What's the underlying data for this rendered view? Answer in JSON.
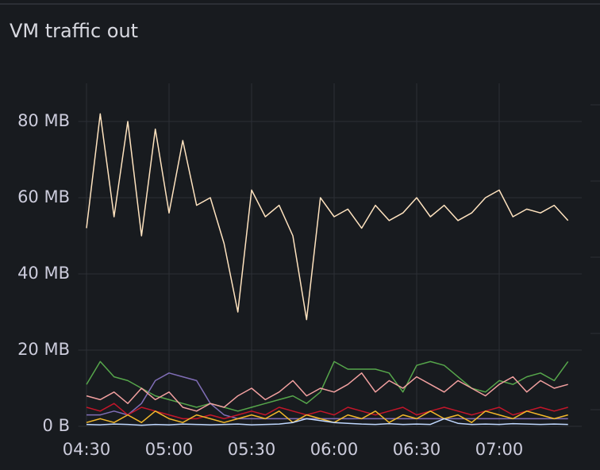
{
  "chart_data": {
    "type": "line",
    "title": "VM traffic out",
    "x": [
      "04:30",
      "04:35",
      "04:40",
      "04:45",
      "04:50",
      "04:55",
      "05:00",
      "05:05",
      "05:10",
      "05:15",
      "05:20",
      "05:25",
      "05:30",
      "05:35",
      "05:40",
      "05:45",
      "05:50",
      "05:55",
      "06:00",
      "06:05",
      "06:10",
      "06:15",
      "06:20",
      "06:25",
      "06:30",
      "06:35",
      "06:40",
      "06:45",
      "06:50",
      "06:55",
      "07:00",
      "07:05",
      "07:10",
      "07:15",
      "07:20",
      "07:25"
    ],
    "xlim": [
      "04:27",
      "07:30"
    ],
    "xticks": [
      "04:30",
      "05:00",
      "05:30",
      "06:00",
      "06:30",
      "07:00"
    ],
    "ylim": [
      0,
      90
    ],
    "yticks": [
      {
        "value": 0,
        "label": "0 B"
      },
      {
        "value": 20,
        "label": "20 MB"
      },
      {
        "value": 40,
        "label": "40 MB"
      },
      {
        "value": 60,
        "label": "60 MB"
      },
      {
        "value": 80,
        "label": "80 MB"
      }
    ],
    "grid": true,
    "series": [
      {
        "color": "#ffe3bf",
        "values": [
          52,
          82,
          55,
          80,
          50,
          78,
          56,
          75,
          58,
          60,
          48,
          30,
          62,
          55,
          58,
          50,
          28,
          60,
          55,
          57,
          52,
          58,
          54,
          56,
          60,
          55,
          58,
          54,
          56,
          60,
          62,
          55,
          57,
          56,
          58,
          54
        ]
      },
      {
        "color": "#56a64b",
        "values": [
          11,
          17,
          13,
          12,
          10,
          8,
          7,
          6,
          5,
          6,
          5,
          4,
          5,
          6,
          7,
          8,
          6,
          9,
          17,
          15,
          15,
          15,
          14,
          9,
          16,
          17,
          16,
          13,
          10,
          9,
          12,
          11,
          13,
          14,
          12,
          17
        ]
      },
      {
        "color": "#806eb7",
        "values": [
          3,
          3,
          4,
          3,
          6,
          12,
          14,
          13,
          12,
          6,
          3,
          2,
          2,
          2,
          2,
          2,
          2,
          2,
          2,
          2,
          2,
          2,
          2,
          2,
          2,
          2,
          2,
          2,
          2,
          2,
          2,
          2,
          2,
          2,
          2,
          2
        ]
      },
      {
        "color": "#f2a0a0",
        "values": [
          8,
          7,
          9,
          6,
          10,
          7,
          9,
          5,
          4,
          6,
          5,
          8,
          10,
          7,
          9,
          12,
          8,
          10,
          9,
          11,
          14,
          9,
          12,
          10,
          13,
          11,
          9,
          12,
          10,
          8,
          11,
          13,
          9,
          12,
          10,
          11
        ]
      },
      {
        "color": "#c4162a",
        "values": [
          5,
          4,
          6,
          3,
          5,
          4,
          3,
          2,
          2,
          3,
          2,
          3,
          4,
          3,
          5,
          4,
          3,
          4,
          3,
          5,
          4,
          3,
          4,
          5,
          3,
          4,
          5,
          4,
          3,
          4,
          5,
          3,
          4,
          5,
          4,
          5
        ]
      },
      {
        "color": "#f2b82a",
        "values": [
          1,
          2,
          1,
          3,
          1,
          4,
          2,
          1,
          3,
          2,
          1,
          2,
          3,
          2,
          4,
          1,
          3,
          2,
          1,
          3,
          2,
          4,
          1,
          3,
          2,
          4,
          2,
          3,
          1,
          4,
          3,
          2,
          4,
          3,
          2,
          3
        ]
      },
      {
        "color": "#c0d8ff",
        "values": [
          0.5,
          0.4,
          0.6,
          0.5,
          0.3,
          0.5,
          0.4,
          0.6,
          0.5,
          0.4,
          0.5,
          0.6,
          0.4,
          0.5,
          0.6,
          1,
          2,
          1.5,
          1,
          0.8,
          0.6,
          0.5,
          0.7,
          0.5,
          0.6,
          0.5,
          2,
          0.8,
          0.5,
          0.6,
          0.5,
          0.7,
          0.6,
          0.5,
          0.6,
          0.5
        ]
      }
    ]
  }
}
